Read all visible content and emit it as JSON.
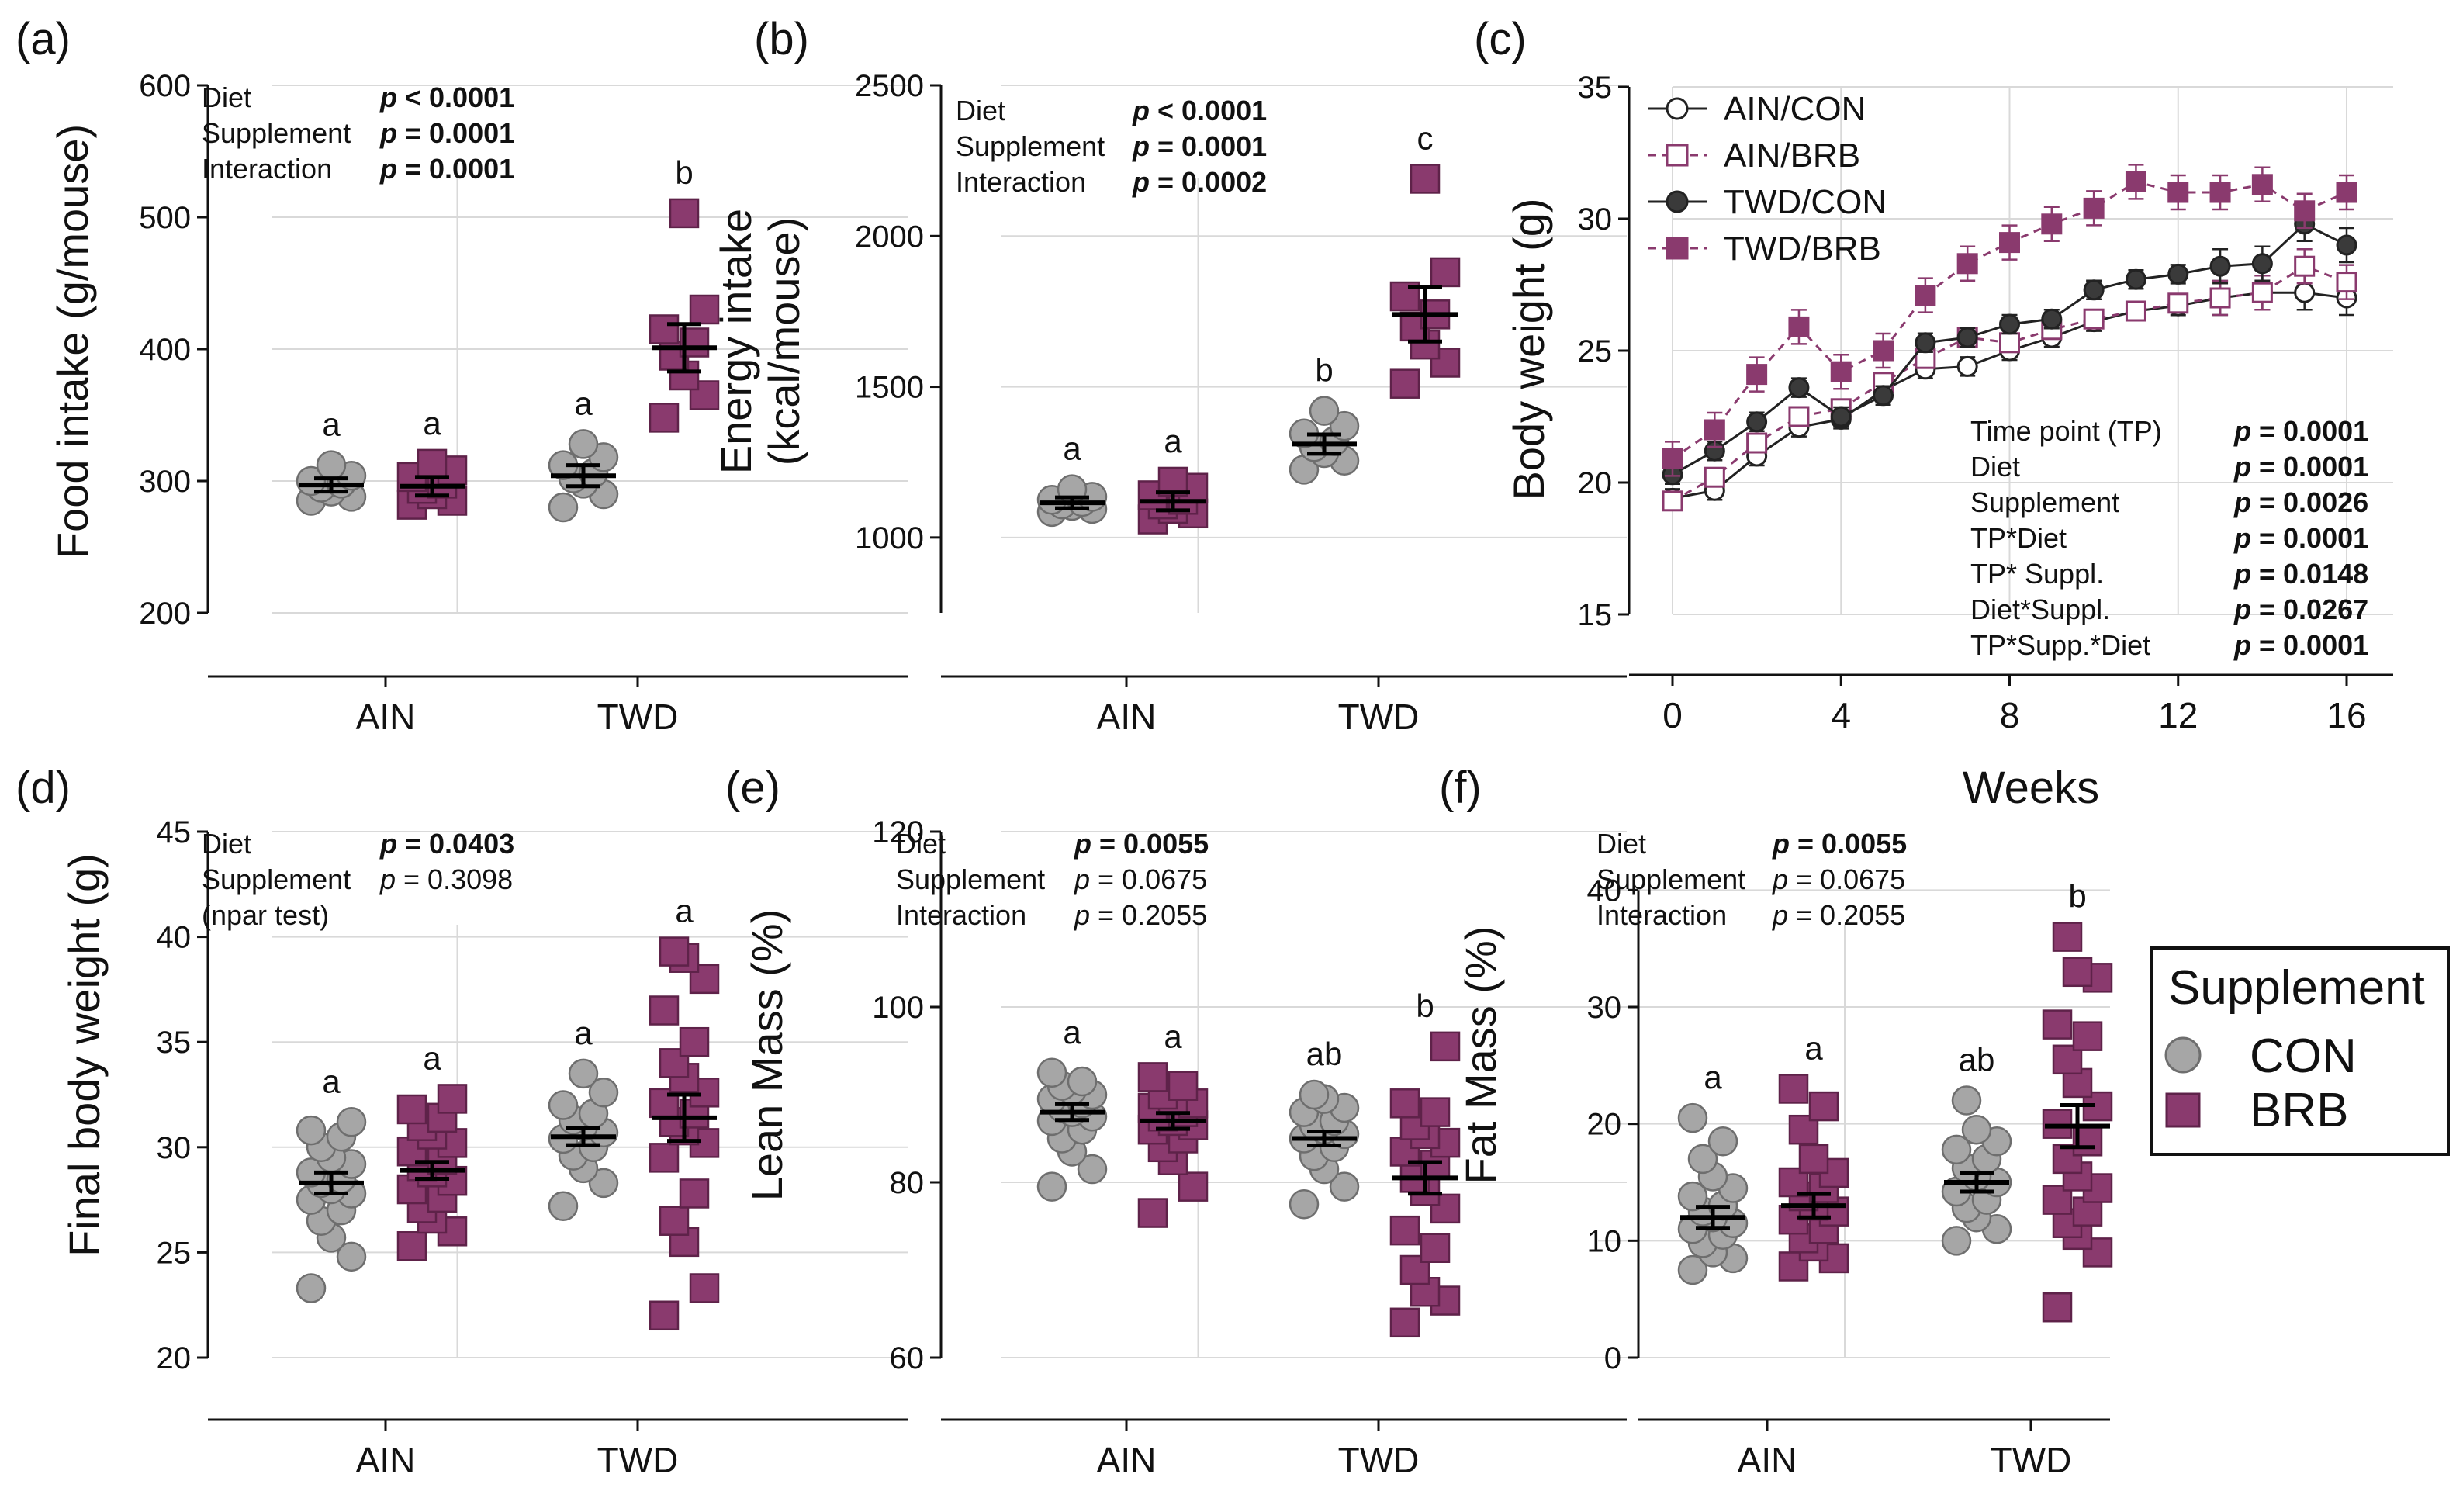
{
  "legend": {
    "title": "Supplement",
    "items": [
      "CON",
      "BRB"
    ]
  },
  "colors": {
    "con": "#a6a6a6",
    "brb": "#8a3a6e",
    "con_line": "#3a3a3a"
  },
  "chart_data": [
    {
      "panel": "(a)",
      "type": "scatter",
      "ylabel": "Food intake (g/mouse)",
      "ylim": [
        200,
        600
      ],
      "yticks": [
        200,
        300,
        400,
        500,
        600
      ],
      "groups": [
        "AIN",
        "TWD"
      ],
      "stats": [
        {
          "label": "Diet",
          "value": "p < 0.0001",
          "bold": true
        },
        {
          "label": "Supplement",
          "value": "p = 0.0001",
          "bold": true
        },
        {
          "label": "Interaction",
          "value": "p = 0.0001",
          "bold": true
        }
      ],
      "series": [
        {
          "group": "AIN",
          "supp": "CON",
          "letter": "a",
          "mean": 297,
          "sem": 5,
          "points": [
            285,
            288,
            292,
            295,
            298,
            300,
            304,
            312
          ]
        },
        {
          "group": "AIN",
          "supp": "BRB",
          "letter": "a",
          "mean": 296,
          "sem": 7,
          "points": [
            282,
            285,
            290,
            294,
            298,
            303,
            308,
            313
          ]
        },
        {
          "group": "TWD",
          "supp": "CON",
          "letter": "a",
          "mean": 304,
          "sem": 8,
          "points": [
            280,
            290,
            298,
            302,
            306,
            312,
            318,
            328
          ]
        },
        {
          "group": "TWD",
          "supp": "BRB",
          "letter": "b",
          "mean": 401,
          "sem": 18,
          "points": [
            348,
            365,
            380,
            395,
            405,
            415,
            430,
            503
          ]
        }
      ]
    },
    {
      "panel": "(b)",
      "type": "scatter",
      "ylabel": "Energy intake\n(kcal/mouse)",
      "ylim": [
        750,
        2500
      ],
      "yticks": [
        1000,
        1500,
        2000,
        2500
      ],
      "groups": [
        "AIN",
        "TWD"
      ],
      "stats": [
        {
          "label": "Diet",
          "value": "p < 0.0001",
          "bold": true
        },
        {
          "label": "Supplement",
          "value": "p = 0.0001",
          "bold": true
        },
        {
          "label": "Interaction",
          "value": "p = 0.0002",
          "bold": true
        }
      ],
      "series": [
        {
          "group": "AIN",
          "supp": "CON",
          "letter": "a",
          "mean": 1115,
          "sem": 18,
          "points": [
            1085,
            1095,
            1105,
            1110,
            1118,
            1125,
            1135,
            1160
          ]
        },
        {
          "group": "AIN",
          "supp": "BRB",
          "letter": "a",
          "mean": 1120,
          "sem": 30,
          "points": [
            1060,
            1080,
            1095,
            1110,
            1125,
            1140,
            1165,
            1185
          ]
        },
        {
          "group": "TWD",
          "supp": "CON",
          "letter": "b",
          "mean": 1310,
          "sem": 32,
          "points": [
            1225,
            1255,
            1280,
            1300,
            1320,
            1345,
            1370,
            1420
          ]
        },
        {
          "group": "TWD",
          "supp": "BRB",
          "letter": "c",
          "mean": 1740,
          "sem": 90,
          "points": [
            1510,
            1580,
            1640,
            1700,
            1740,
            1800,
            1880,
            2190
          ]
        }
      ]
    },
    {
      "panel": "(c)",
      "type": "line",
      "xlabel": "Weeks",
      "ylabel": "Body weight (g)",
      "xlim": [
        0,
        16
      ],
      "ylim": [
        15,
        35
      ],
      "xticks": [
        0,
        4,
        8,
        12,
        16
      ],
      "yticks": [
        15,
        20,
        25,
        30,
        35
      ],
      "stats": [
        {
          "label": "Time point (TP)",
          "value": "p = 0.0001",
          "bold": true
        },
        {
          "label": "Diet",
          "value": "p = 0.0001",
          "bold": true
        },
        {
          "label": "Supplement",
          "value": "p = 0.0026",
          "bold": true
        },
        {
          "label": "TP*Diet",
          "value": "p = 0.0001",
          "bold": true
        },
        {
          "label": "TP* Suppl.",
          "value": "p = 0.0148",
          "bold": true
        },
        {
          "label": "Diet*Suppl.",
          "value": "p = 0.0267",
          "bold": true
        },
        {
          "label": "TP*Supp.*Diet",
          "value": "p = 0.0001",
          "bold": true
        }
      ],
      "x": [
        0,
        1,
        2,
        3,
        4,
        5,
        6,
        7,
        8,
        9,
        10,
        11,
        12,
        13,
        14,
        15,
        16
      ],
      "series": [
        {
          "name": "AIN/CON",
          "marker": "circle-open",
          "values": [
            19.4,
            19.7,
            21.0,
            22.1,
            22.4,
            23.5,
            24.3,
            24.4,
            25.0,
            25.5,
            26.1,
            26.5,
            26.7,
            27.0,
            27.2,
            27.2,
            27.0
          ]
        },
        {
          "name": "AIN/BRB",
          "marker": "square-open",
          "values": [
            19.3,
            20.2,
            21.5,
            22.5,
            22.8,
            23.8,
            24.7,
            25.5,
            25.3,
            25.8,
            26.2,
            26.5,
            26.8,
            27.0,
            27.2,
            28.2,
            27.6
          ]
        },
        {
          "name": "TWD/CON",
          "marker": "circle",
          "values": [
            20.3,
            21.2,
            22.3,
            23.6,
            22.5,
            23.3,
            25.3,
            25.5,
            26.0,
            26.2,
            27.3,
            27.7,
            27.9,
            28.2,
            28.3,
            29.8,
            29.0
          ]
        },
        {
          "name": "TWD/BRB",
          "marker": "square",
          "values": [
            20.9,
            22.0,
            24.1,
            25.9,
            24.2,
            25.0,
            27.1,
            28.3,
            29.1,
            29.8,
            30.4,
            31.4,
            31.0,
            31.0,
            31.3,
            30.3,
            31.0
          ]
        }
      ]
    },
    {
      "panel": "(d)",
      "type": "scatter",
      "ylabel": "Final body weight (g)",
      "ylim": [
        20,
        45
      ],
      "yticks": [
        20,
        25,
        30,
        35,
        40,
        45
      ],
      "groups": [
        "AIN",
        "TWD"
      ],
      "stats": [
        {
          "label": "Diet",
          "value": "p = 0.0403",
          "bold": true
        },
        {
          "label": "Supplement",
          "value": "p = 0.3098",
          "bold": false
        },
        {
          "label": "(npar test)",
          "value": "",
          "bold": false
        }
      ],
      "series": [
        {
          "group": "AIN",
          "supp": "CON",
          "letter": "a",
          "mean": 28.3,
          "sem": 0.5,
          "points": [
            23.3,
            24.8,
            25.7,
            26.5,
            27.0,
            27.5,
            27.8,
            28.0,
            28.3,
            28.5,
            28.8,
            29.2,
            29.5,
            30.0,
            30.5,
            30.8,
            31.2
          ]
        },
        {
          "group": "AIN",
          "supp": "BRB",
          "letter": "a",
          "mean": 28.9,
          "sem": 0.4,
          "points": [
            25.3,
            26.0,
            26.6,
            27.1,
            27.6,
            28.0,
            28.4,
            28.8,
            29.1,
            29.4,
            29.8,
            30.2,
            30.6,
            31.0,
            31.4,
            31.8,
            32.3
          ]
        },
        {
          "group": "TWD",
          "supp": "CON",
          "letter": "a",
          "mean": 30.5,
          "sem": 0.4,
          "points": [
            27.2,
            28.3,
            29.0,
            29.6,
            30.0,
            30.4,
            30.7,
            31.0,
            31.3,
            31.6,
            32.0,
            32.6,
            33.5
          ]
        },
        {
          "group": "TWD",
          "supp": "BRB",
          "letter": "a",
          "mean": 31.4,
          "sem": 1.1,
          "points": [
            22.0,
            23.3,
            25.5,
            26.5,
            27.8,
            29.5,
            30.2,
            30.8,
            31.2,
            31.6,
            32.1,
            32.6,
            33.3,
            34.0,
            35.0,
            36.5,
            38.0,
            39.0,
            39.3
          ]
        }
      ]
    },
    {
      "panel": "(e)",
      "type": "scatter",
      "ylabel": "Lean Mass (%)",
      "ylim": [
        60,
        120
      ],
      "yticks": [
        60,
        80,
        100,
        120
      ],
      "groups": [
        "AIN",
        "TWD"
      ],
      "stats": [
        {
          "label": "Diet",
          "value": "p = 0.0055",
          "bold": true
        },
        {
          "label": "Supplement",
          "value": "p = 0.0675",
          "bold": false
        },
        {
          "label": "Interaction",
          "value": "p = 0.2055",
          "bold": false
        }
      ],
      "series": [
        {
          "group": "AIN",
          "supp": "CON",
          "letter": "a",
          "mean": 88.0,
          "sem": 0.9,
          "points": [
            79.5,
            81.5,
            83.5,
            85.0,
            86.0,
            87.0,
            87.5,
            88.0,
            88.5,
            89.0,
            89.5,
            90.0,
            90.5,
            91.0,
            91.5,
            92.5
          ]
        },
        {
          "group": "AIN",
          "supp": "BRB",
          "letter": "a",
          "mean": 87.0,
          "sem": 0.9,
          "points": [
            76.5,
            79.5,
            82.5,
            84.0,
            85.0,
            86.0,
            86.5,
            87.0,
            87.5,
            88.0,
            88.5,
            89.0,
            89.5,
            90.0,
            91.0,
            92.0
          ]
        },
        {
          "group": "TWD",
          "supp": "CON",
          "letter": "ab",
          "mean": 85.0,
          "sem": 0.8,
          "points": [
            77.5,
            79.5,
            81.5,
            83.0,
            84.0,
            85.0,
            85.5,
            86.0,
            86.5,
            87.0,
            88.0,
            88.5,
            89.5,
            90.0
          ]
        },
        {
          "group": "TWD",
          "supp": "BRB",
          "letter": "b",
          "mean": 80.5,
          "sem": 1.8,
          "points": [
            64.0,
            66.5,
            67.5,
            70.0,
            72.5,
            74.5,
            77.0,
            79.0,
            80.5,
            82.0,
            83.5,
            84.5,
            85.5,
            86.5,
            88.0,
            89.0,
            95.5
          ]
        }
      ]
    },
    {
      "panel": "(f)",
      "type": "scatter",
      "ylabel": "Fat Mass (%)",
      "ylim": [
        0,
        45
      ],
      "yticks": [
        0,
        10,
        20,
        30,
        40
      ],
      "groups": [
        "AIN",
        "TWD"
      ],
      "stats": [
        {
          "label": "Diet",
          "value": "p = 0.0055",
          "bold": true
        },
        {
          "label": "Supplement",
          "value": "p = 0.0675",
          "bold": false
        },
        {
          "label": "Interaction",
          "value": "p = 0.2055",
          "bold": false
        }
      ],
      "series": [
        {
          "group": "AIN",
          "supp": "CON",
          "letter": "a",
          "mean": 12.0,
          "sem": 0.9,
          "points": [
            7.5,
            8.5,
            9.0,
            9.8,
            10.5,
            11.0,
            11.5,
            12.0,
            12.5,
            13.0,
            13.8,
            14.5,
            15.5,
            17.0,
            18.5,
            20.5
          ]
        },
        {
          "group": "AIN",
          "supp": "BRB",
          "letter": "a",
          "mean": 13.0,
          "sem": 1.0,
          "points": [
            7.8,
            8.5,
            9.5,
            10.2,
            11.0,
            11.8,
            12.5,
            13.0,
            13.8,
            14.5,
            15.0,
            15.8,
            17.0,
            19.5,
            21.5,
            23.0
          ]
        },
        {
          "group": "TWD",
          "supp": "CON",
          "letter": "ab",
          "mean": 15.0,
          "sem": 0.8,
          "points": [
            10.0,
            11.0,
            12.0,
            12.8,
            13.5,
            14.2,
            15.0,
            15.5,
            16.2,
            17.0,
            17.8,
            18.5,
            19.5,
            22.0
          ]
        },
        {
          "group": "TWD",
          "supp": "BRB",
          "letter": "b",
          "mean": 19.8,
          "sem": 1.8,
          "points": [
            4.3,
            9.0,
            10.5,
            11.5,
            12.5,
            13.5,
            14.5,
            15.5,
            17.0,
            18.5,
            20.0,
            21.5,
            23.5,
            25.5,
            27.5,
            28.5,
            32.5,
            33.0,
            36.0
          ]
        }
      ]
    }
  ]
}
